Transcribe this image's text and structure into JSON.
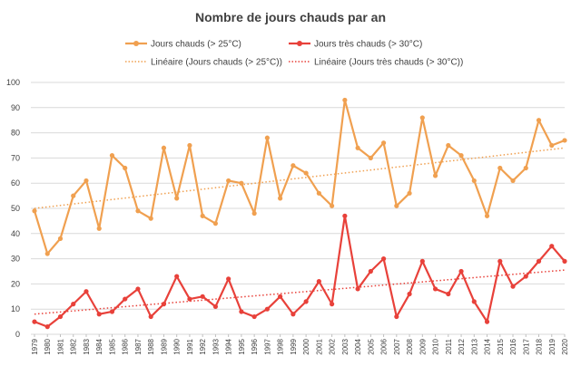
{
  "chart_data": {
    "type": "line",
    "title": "Nombre de jours chauds par an",
    "xlabel": "",
    "ylabel": "",
    "ylim": [
      0,
      100
    ],
    "yticks": [
      0,
      10,
      20,
      30,
      40,
      50,
      60,
      70,
      80,
      90,
      100
    ],
    "grid": true,
    "legend_position": "top",
    "x": [
      "1979",
      "1980",
      "1981",
      "1982",
      "1983",
      "1984",
      "1985",
      "1986",
      "1987",
      "1988",
      "1989",
      "1990",
      "1991",
      "1992",
      "1993",
      "1994",
      "1995",
      "1996",
      "1997",
      "1998",
      "1999",
      "2000",
      "2001",
      "2002",
      "2003",
      "2004",
      "2005",
      "2006",
      "2007",
      "2008",
      "2009",
      "2010",
      "2011",
      "2012",
      "2013",
      "2014",
      "2015",
      "2016",
      "2017",
      "2018",
      "2019",
      "2020"
    ],
    "series": [
      {
        "name": "Jours chauds (> 25°C)",
        "color": "#f0a050",
        "values": [
          49,
          32,
          38,
          55,
          61,
          42,
          71,
          66,
          49,
          46,
          74,
          54,
          75,
          47,
          44,
          61,
          60,
          48,
          78,
          54,
          67,
          64,
          56,
          51,
          93,
          74,
          70,
          76,
          51,
          56,
          86,
          63,
          75,
          71,
          61,
          47,
          66,
          61,
          66,
          85,
          75,
          77
        ]
      },
      {
        "name": "Jours très chauds (> 30°C)",
        "color": "#e8413a",
        "values": [
          5,
          3,
          7,
          12,
          17,
          8,
          9,
          14,
          18,
          7,
          12,
          23,
          14,
          15,
          11,
          22,
          9,
          7,
          10,
          15,
          8,
          13,
          21,
          12,
          47,
          18,
          25,
          30,
          7,
          16,
          29,
          18,
          16,
          25,
          13,
          5,
          29,
          19,
          23,
          29,
          35,
          29
        ]
      }
    ],
    "trendlines": [
      {
        "name": "Linéaire (Jours chauds (> 25°C))",
        "color": "#f0a050",
        "start": 50,
        "end": 74
      },
      {
        "name": "Linéaire (Jours très chauds (> 30°C))",
        "color": "#e8413a",
        "start": 8,
        "end": 25.5
      }
    ]
  }
}
